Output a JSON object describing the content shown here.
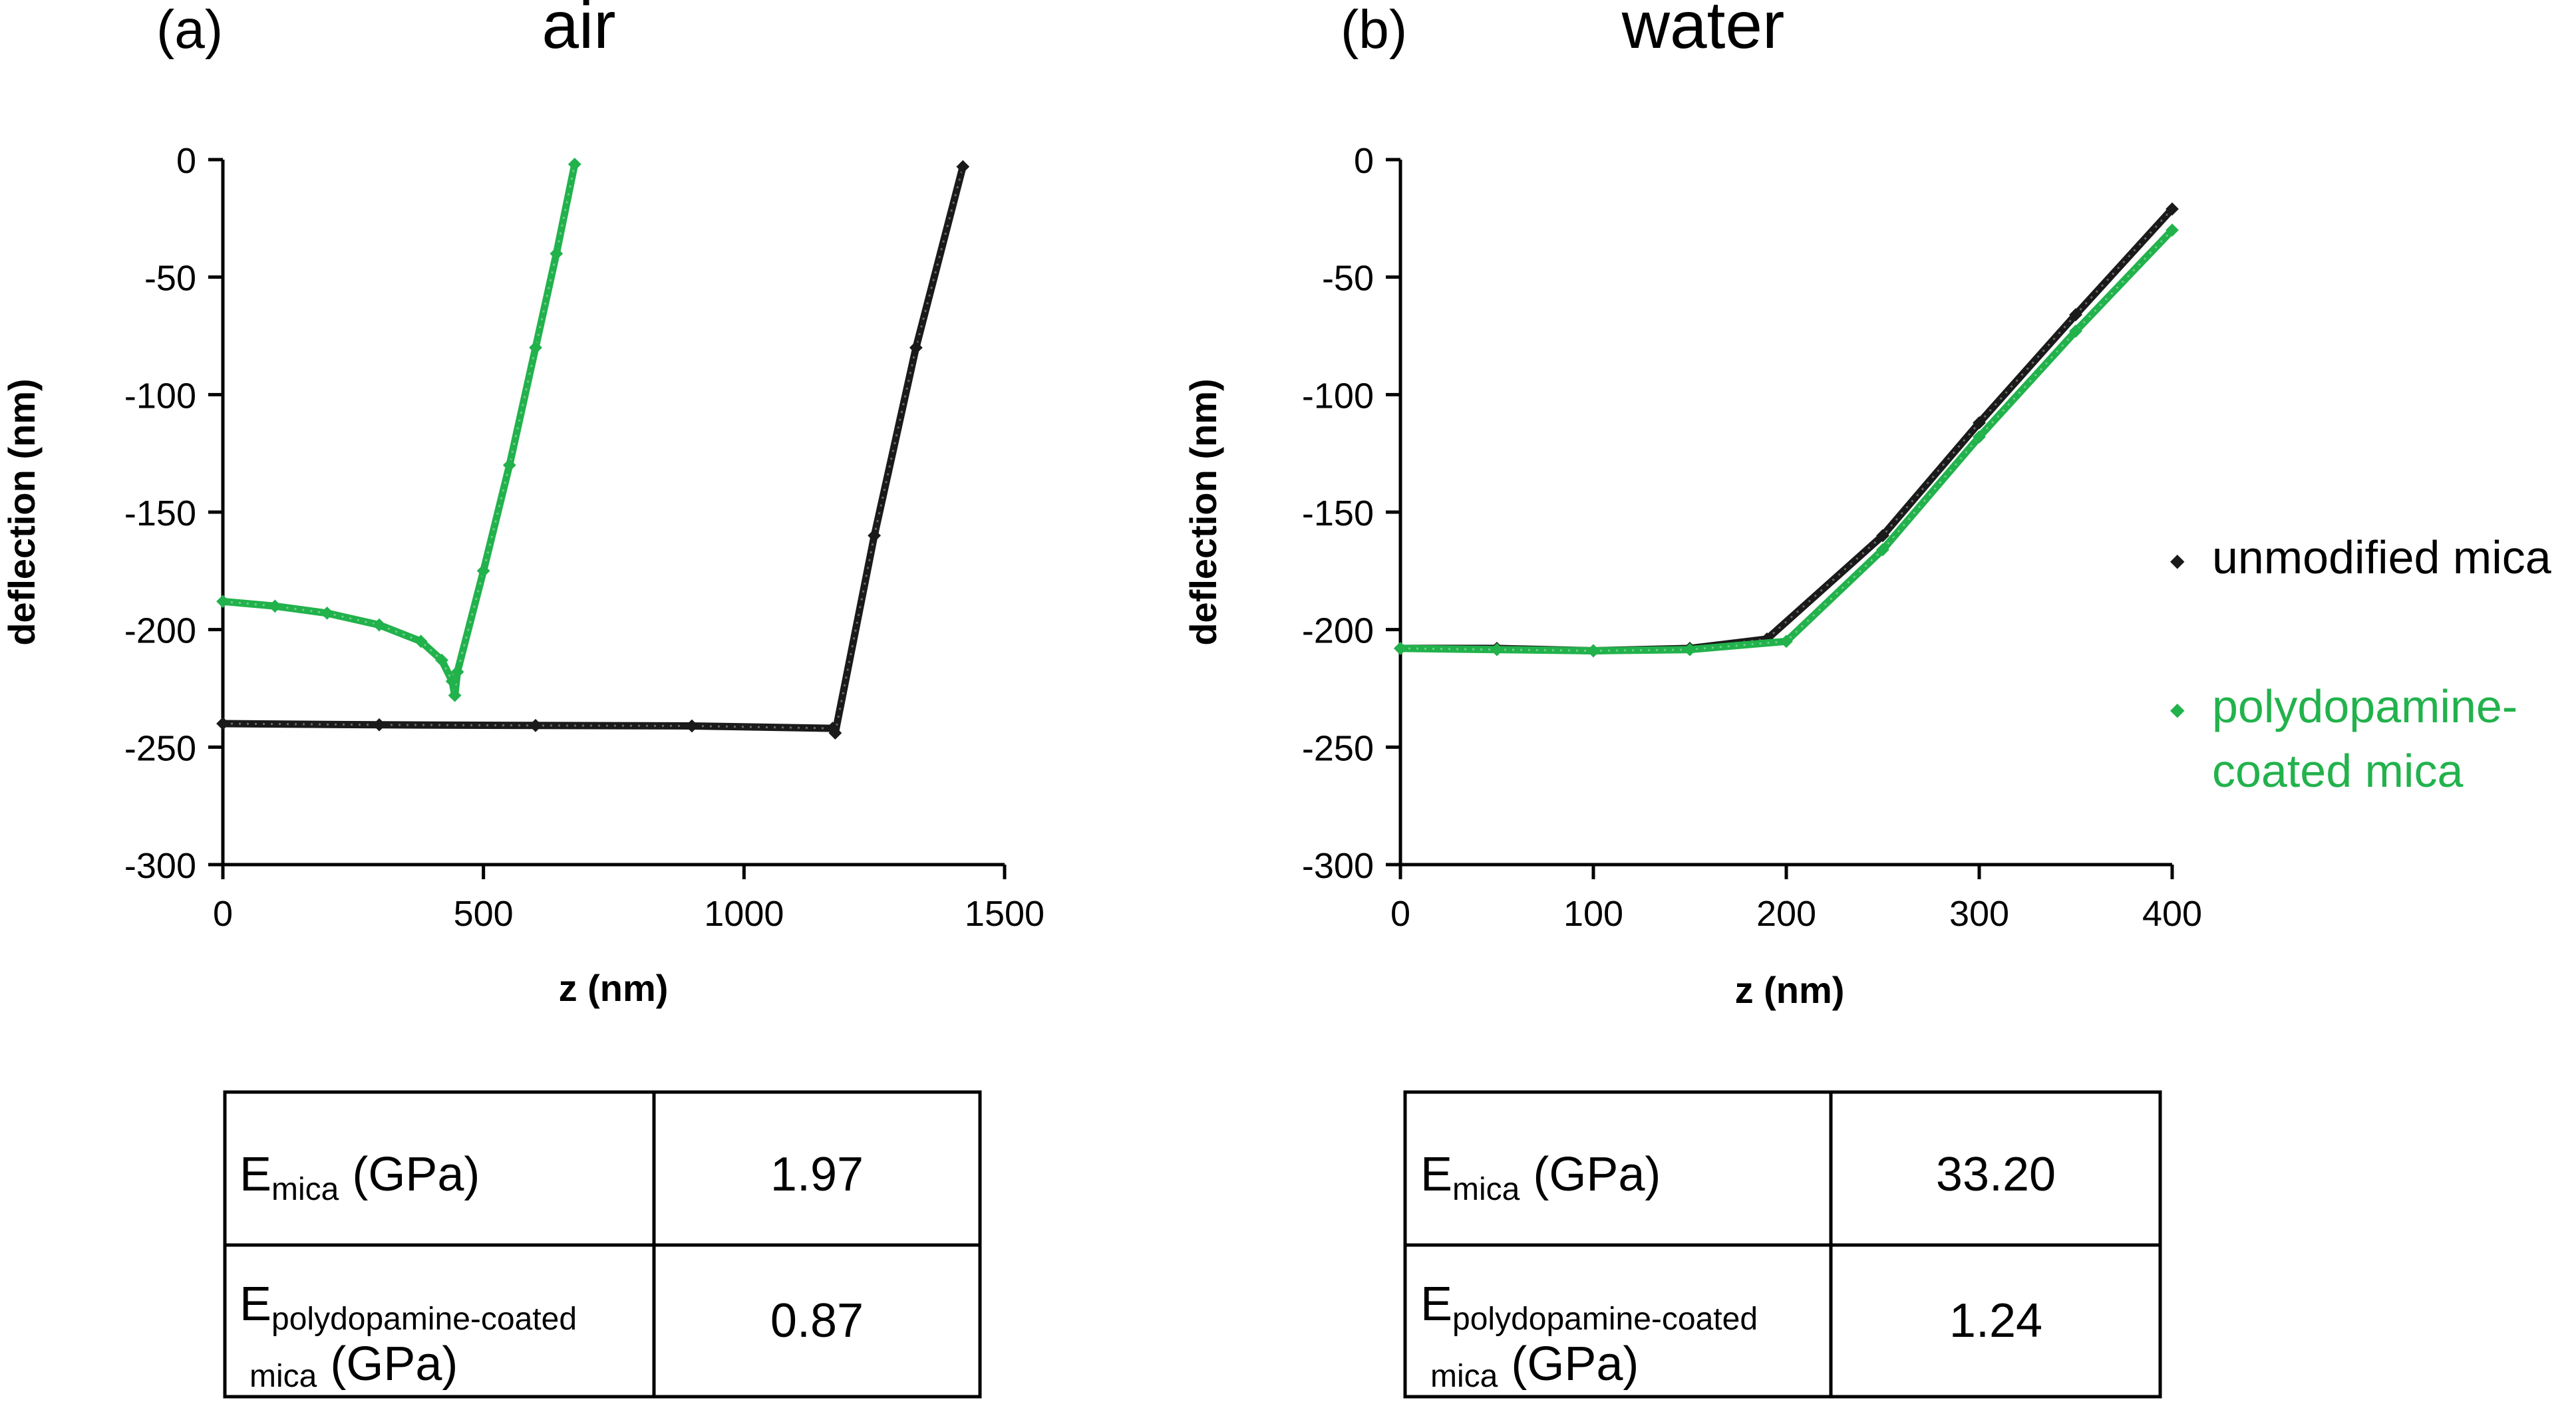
{
  "chart_data": [
    {
      "type": "scatter",
      "panel_label": "(a)",
      "title": "air",
      "xlabel": "z (nm)",
      "ylabel": "deflection (nm)",
      "xlim": [
        0,
        1500
      ],
      "ylim": [
        -300,
        0
      ],
      "xticks": [
        0,
        500,
        1000,
        1500
      ],
      "yticks": [
        0,
        -50,
        -100,
        -150,
        -200,
        -250,
        -300
      ],
      "grid": false,
      "series": [
        {
          "name": "unmodified mica",
          "color": "#1a1a1a",
          "x": [
            0,
            300,
            600,
            900,
            1170,
            1175,
            1250,
            1330,
            1420
          ],
          "y": [
            -240,
            -240.5,
            -240.8,
            -241,
            -242,
            -244,
            -160,
            -80,
            -3
          ]
        },
        {
          "name": "polydopamine-coated mica",
          "color": "#22b24c",
          "x": [
            0,
            100,
            200,
            300,
            380,
            420,
            440,
            445,
            450,
            500,
            550,
            600,
            640,
            675
          ],
          "y": [
            -188,
            -190,
            -193,
            -198,
            -205,
            -213,
            -222,
            -228,
            -218,
            -175,
            -130,
            -80,
            -40,
            -2
          ]
        }
      ]
    },
    {
      "type": "scatter",
      "panel_label": "(b)",
      "title": "water",
      "xlabel": "z (nm)",
      "ylabel": "deflection (nm)",
      "xlim": [
        0,
        400
      ],
      "ylim": [
        -300,
        0
      ],
      "xticks": [
        0,
        100,
        200,
        300,
        400
      ],
      "yticks": [
        0,
        -50,
        -100,
        -150,
        -200,
        -250,
        -300
      ],
      "grid": false,
      "series": [
        {
          "name": "unmodified mica",
          "color": "#1a1a1a",
          "x": [
            0,
            50,
            100,
            150,
            190,
            250,
            300,
            350,
            400
          ],
          "y": [
            -208,
            -208,
            -209,
            -208,
            -204,
            -160,
            -112,
            -66,
            -21
          ]
        },
        {
          "name": "polydopamine-coated mica",
          "color": "#22b24c",
          "x": [
            0,
            50,
            100,
            150,
            200,
            250,
            300,
            350,
            400
          ],
          "y": [
            -208,
            -208.5,
            -209,
            -208.5,
            -205,
            -166,
            -118,
            -73,
            -30
          ]
        }
      ]
    }
  ],
  "legend": {
    "items": [
      {
        "marker": "◆",
        "color": "#1a1a1a",
        "lines": [
          "unmodified mica"
        ]
      },
      {
        "marker": "◆",
        "color": "#22b24c",
        "lines": [
          "polydopamine-",
          "coated mica"
        ]
      }
    ]
  },
  "tables": [
    {
      "rows": [
        {
          "label_main": "E",
          "label_sub": "mica",
          "label_tail": " (GPa)",
          "value": "1.97"
        },
        {
          "label_main": "E",
          "label_sub": "polydopamine-coated",
          "label_sub2": "mica",
          "label_tail": " (GPa)",
          "value": "0.87"
        }
      ]
    },
    {
      "rows": [
        {
          "label_main": "E",
          "label_sub": "mica",
          "label_tail": " (GPa)",
          "value": "33.20"
        },
        {
          "label_main": "E",
          "label_sub": "polydopamine-coated",
          "label_sub2": "mica",
          "label_tail": " (GPa)",
          "value": "1.24"
        }
      ]
    }
  ]
}
